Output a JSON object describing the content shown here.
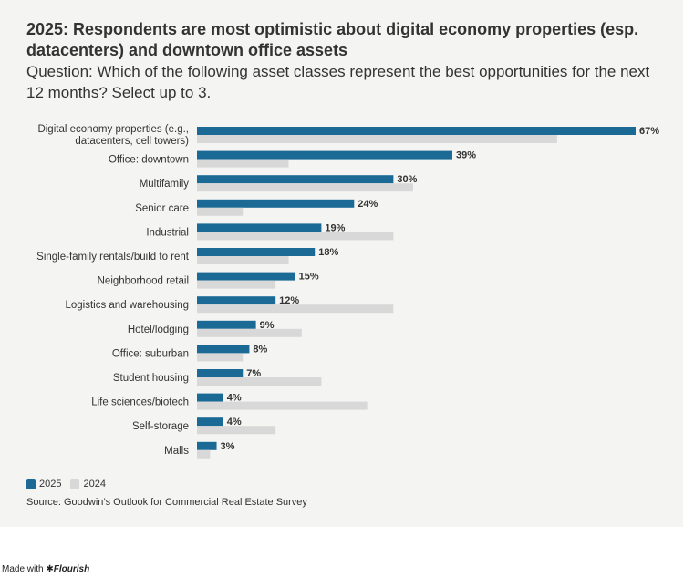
{
  "title": "2025: Respondents are most optimistic about digital economy properties (esp. datacenters) and downtown office assets",
  "subtitle": "Question: Which of the following asset classes represent the best opportunities for the next 12 months? Select up to 3.",
  "source": "Source: Goodwin’s Outlook for Commercial Real Estate Survey",
  "credit": {
    "prefix": "Made with",
    "brand": "✱Flourish"
  },
  "colors": {
    "series_2025": "#1b6a96",
    "series_2024": "#d8d8d8",
    "background": "#f4f4f2"
  },
  "chart_data": {
    "type": "bar",
    "orientation": "horizontal",
    "title": "2025: Respondents are most optimistic about digital economy properties (esp. datacenters) and downtown office assets",
    "xlabel": "",
    "ylabel": "",
    "xlim": [
      0,
      67
    ],
    "categories": [
      [
        "Digital economy properties (e.g.,",
        "datacenters, cell towers)"
      ],
      [
        "Office: downtown"
      ],
      [
        "Multifamily"
      ],
      [
        "Senior care"
      ],
      [
        "Industrial"
      ],
      [
        "Single-family rentals/build to rent"
      ],
      [
        "Neighborhood retail"
      ],
      [
        "Logistics and warehousing"
      ],
      [
        "Hotel/lodging"
      ],
      [
        "Office: suburban"
      ],
      [
        "Student housing"
      ],
      [
        "Life sciences/biotech"
      ],
      [
        "Self-storage"
      ],
      [
        "Malls"
      ]
    ],
    "series": [
      {
        "name": "2025",
        "values": [
          67,
          39,
          30,
          24,
          19,
          18,
          15,
          12,
          9,
          8,
          7,
          4,
          4,
          3
        ],
        "labels": [
          "67%",
          "39%",
          "30%",
          "24%",
          "19%",
          "18%",
          "15%",
          "12%",
          "9%",
          "8%",
          "7%",
          "4%",
          "4%",
          "3%"
        ]
      },
      {
        "name": "2024",
        "values": [
          55,
          14,
          33,
          7,
          30,
          14,
          12,
          30,
          16,
          7,
          19,
          26,
          12,
          2
        ]
      }
    ],
    "legend": [
      "2025",
      "2024"
    ],
    "legend_position": "bottom-left"
  }
}
